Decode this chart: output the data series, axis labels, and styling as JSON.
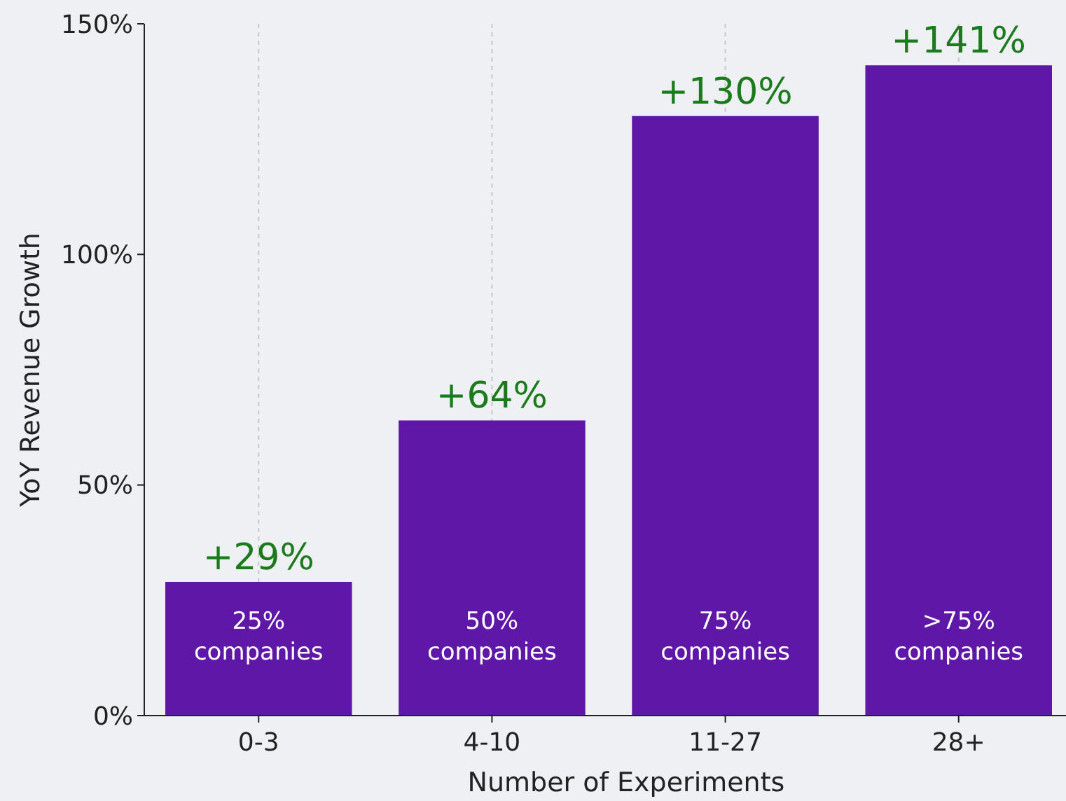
{
  "chart_data": {
    "type": "bar",
    "xlabel": "Number of Experiments",
    "ylabel": "YoY Revenue Growth",
    "categories": [
      "0-3",
      "4-10",
      "11-27",
      "28+"
    ],
    "values": [
      29,
      64,
      130,
      141
    ],
    "color": "#5e17a6",
    "value_labels": [
      "+29%",
      "+64%",
      "+130%",
      "+141%"
    ],
    "ylim": [
      0,
      150
    ],
    "yticks": [
      {
        "value": 0,
        "label": "0%"
      },
      {
        "value": 50,
        "label": "50%"
      },
      {
        "value": 100,
        "label": "100%"
      },
      {
        "value": 150,
        "label": "150%"
      }
    ],
    "grid": "x",
    "annotations": [
      "25%\ncompanies",
      "50%\ncompanies",
      "75%\ncompanies",
      ">75%\ncompanies"
    ]
  }
}
